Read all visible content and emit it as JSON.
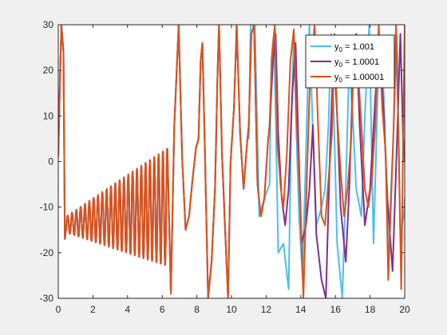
{
  "chart_data": {
    "type": "line",
    "title": "",
    "xlabel": "",
    "ylabel": "",
    "xlim": [
      0,
      20
    ],
    "ylim": [
      -30,
      30
    ],
    "x_ticks": [
      0,
      2,
      4,
      6,
      8,
      10,
      12,
      14,
      16,
      18,
      20
    ],
    "y_ticks": [
      -30,
      -20,
      -10,
      0,
      10,
      20,
      30
    ],
    "x_tick_labels": [
      "0",
      "2",
      "4",
      "6",
      "8",
      "10",
      "12",
      "14",
      "16",
      "18",
      "20"
    ],
    "y_tick_labels": [
      "-30",
      "-20",
      "-10",
      "0",
      "10",
      "20",
      "30"
    ],
    "grid": false,
    "legend_position": "top-right",
    "series": [
      {
        "name": "y0 = 1.001",
        "legend_base": "y",
        "legend_sub": "0",
        "legend_rest": " = 1.001",
        "color": "#4dbeee",
        "diverge_x": 11.0,
        "extra": [
          [
            11.0,
            5
          ],
          [
            11.1,
            30
          ],
          [
            11.35,
            30
          ],
          [
            11.6,
            -12
          ],
          [
            11.9,
            -8
          ],
          [
            12.2,
            -5
          ],
          [
            12.3,
            22
          ],
          [
            12.45,
            28
          ],
          [
            12.55,
            10
          ],
          [
            12.7,
            -20
          ],
          [
            13.0,
            -18
          ],
          [
            13.3,
            -28
          ],
          [
            13.45,
            8
          ],
          [
            13.6,
            28
          ],
          [
            13.75,
            6
          ],
          [
            13.9,
            -12
          ],
          [
            14.1,
            -25
          ],
          [
            14.3,
            2
          ],
          [
            14.5,
            30
          ],
          [
            14.7,
            6
          ],
          [
            14.9,
            -14
          ],
          [
            15.2,
            -10
          ],
          [
            15.4,
            -6
          ],
          [
            15.6,
            8
          ],
          [
            15.75,
            28
          ],
          [
            15.9,
            12
          ],
          [
            16.1,
            -18
          ],
          [
            16.4,
            -30
          ],
          [
            16.6,
            -5
          ],
          [
            16.8,
            22
          ],
          [
            17.0,
            10
          ],
          [
            17.2,
            -6
          ],
          [
            17.5,
            -12
          ],
          [
            17.7,
            10
          ],
          [
            17.95,
            30
          ],
          [
            18.2,
            -18
          ],
          [
            18.45,
            16
          ],
          [
            18.6,
            26
          ],
          [
            18.8,
            14
          ],
          [
            19.05,
            -20
          ],
          [
            19.35,
            6
          ],
          [
            19.55,
            28
          ],
          [
            19.75,
            -16
          ],
          [
            19.95,
            -12
          ],
          [
            20.0,
            -8
          ]
        ]
      },
      {
        "name": "y0 = 1.0001",
        "legend_base": "y",
        "legend_sub": "0",
        "legend_rest": " = 1.0001",
        "color": "#7e2f8e",
        "diverge_x": 12.2,
        "extra": [
          [
            12.2,
            8
          ],
          [
            12.4,
            22
          ],
          [
            12.55,
            28
          ],
          [
            12.7,
            6
          ],
          [
            12.9,
            -8
          ],
          [
            13.1,
            -14
          ],
          [
            13.3,
            -6
          ],
          [
            13.5,
            14
          ],
          [
            13.7,
            26
          ],
          [
            13.85,
            6
          ],
          [
            14.05,
            -18
          ],
          [
            14.3,
            -14
          ],
          [
            14.5,
            -6
          ],
          [
            14.7,
            8
          ],
          [
            14.9,
            -16
          ],
          [
            15.2,
            -26
          ],
          [
            15.45,
            -30
          ],
          [
            15.7,
            4
          ],
          [
            15.9,
            24
          ],
          [
            16.1,
            10
          ],
          [
            16.3,
            -10
          ],
          [
            16.6,
            -22
          ],
          [
            16.8,
            -6
          ],
          [
            17.0,
            18
          ],
          [
            17.2,
            28
          ],
          [
            17.4,
            8
          ],
          [
            17.7,
            -14
          ],
          [
            18.0,
            -6
          ],
          [
            18.3,
            14
          ],
          [
            18.55,
            26
          ],
          [
            18.8,
            10
          ],
          [
            19.0,
            -8
          ],
          [
            19.3,
            -24
          ],
          [
            19.55,
            4
          ],
          [
            19.75,
            28
          ],
          [
            19.9,
            6
          ],
          [
            20.0,
            0
          ]
        ]
      },
      {
        "name": "y0 = 1.00001",
        "legend_base": "y",
        "legend_sub": "0",
        "legend_rest": " = 1.00001",
        "color": "#d95319",
        "diverge_x": 20.0,
        "extra": []
      }
    ],
    "base_segments": [
      [
        [
          0.0,
          1
        ],
        [
          0.1,
          18
        ],
        [
          0.18,
          30
        ],
        [
          0.3,
          24
        ],
        [
          0.38,
          -17
        ],
        [
          0.48,
          -14
        ]
      ],
      [
        [
          0.48,
          -14
        ],
        [
          3.6,
          -13.5
        ],
        [
          6.3,
          -10
        ],
        [
          6.5,
          -29
        ]
      ],
      [
        [
          6.5,
          -29
        ],
        [
          6.7,
          8
        ],
        [
          6.95,
          30
        ],
        [
          7.15,
          1
        ],
        [
          7.35,
          -15
        ],
        [
          7.55,
          -12
        ],
        [
          7.75,
          -4
        ],
        [
          7.95,
          3
        ],
        [
          8.1,
          5
        ],
        [
          8.22,
          22
        ],
        [
          8.32,
          26
        ],
        [
          8.45,
          5
        ],
        [
          8.65,
          -30
        ],
        [
          8.85,
          -22
        ],
        [
          9.05,
          -6
        ],
        [
          9.2,
          20
        ],
        [
          9.28,
          30
        ],
        [
          9.45,
          2
        ],
        [
          9.6,
          -12
        ],
        [
          9.8,
          -30
        ],
        [
          9.95,
          0
        ],
        [
          10.15,
          12
        ],
        [
          10.3,
          30
        ],
        [
          10.5,
          6
        ],
        [
          10.7,
          -6
        ],
        [
          10.9,
          4
        ],
        [
          11.0,
          8
        ],
        [
          11.15,
          28
        ],
        [
          11.3,
          30
        ],
        [
          11.5,
          -5
        ],
        [
          11.7,
          -12
        ],
        [
          11.9,
          -8
        ],
        [
          12.1,
          4
        ],
        [
          12.2,
          8
        ]
      ],
      [
        [
          12.2,
          8
        ],
        [
          12.35,
          24
        ],
        [
          12.5,
          30
        ],
        [
          12.65,
          4
        ],
        [
          12.85,
          -6
        ],
        [
          13.0,
          -10
        ],
        [
          13.2,
          2
        ],
        [
          13.4,
          22
        ],
        [
          13.6,
          29
        ],
        [
          13.75,
          10
        ],
        [
          13.95,
          -8
        ],
        [
          14.15,
          -30
        ],
        [
          14.35,
          -4
        ],
        [
          14.55,
          20
        ],
        [
          14.8,
          30
        ],
        [
          15.0,
          8
        ],
        [
          15.2,
          -12
        ],
        [
          15.4,
          -14
        ],
        [
          15.6,
          -4
        ],
        [
          15.8,
          6
        ],
        [
          15.95,
          28
        ],
        [
          16.1,
          10
        ],
        [
          16.3,
          -2
        ],
        [
          16.5,
          -12
        ],
        [
          16.7,
          -6
        ],
        [
          16.9,
          4
        ],
        [
          17.1,
          26
        ],
        [
          17.3,
          20
        ],
        [
          17.5,
          8
        ],
        [
          17.7,
          -6
        ],
        [
          17.9,
          -10
        ],
        [
          18.1,
          -4
        ],
        [
          18.3,
          8
        ],
        [
          18.5,
          30
        ],
        [
          18.7,
          12
        ],
        [
          18.9,
          2
        ],
        [
          19.05,
          -26
        ],
        [
          19.2,
          -10
        ],
        [
          19.35,
          6
        ],
        [
          19.5,
          30
        ],
        [
          19.65,
          4
        ],
        [
          19.8,
          -28
        ],
        [
          19.92,
          8
        ],
        [
          20.0,
          30
        ]
      ]
    ]
  }
}
